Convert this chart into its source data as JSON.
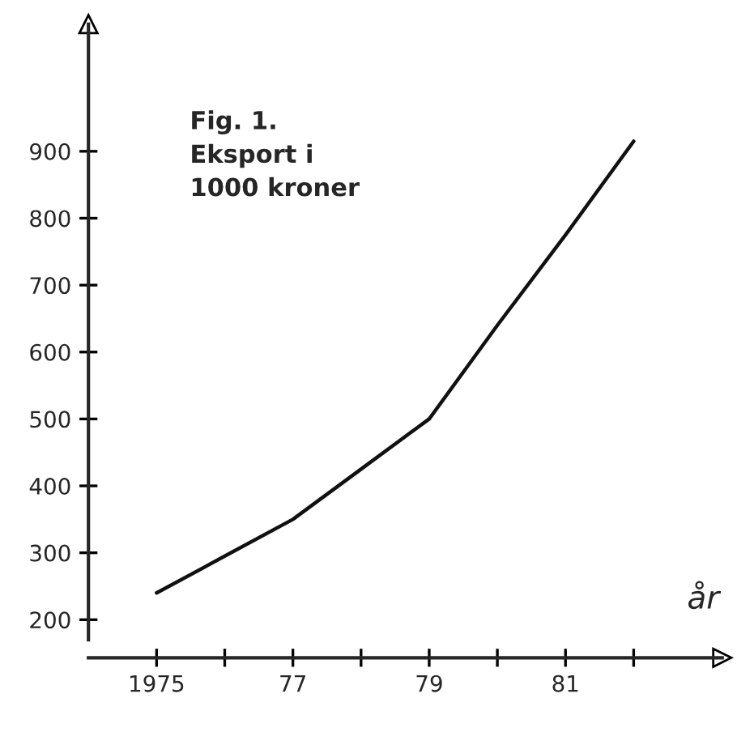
{
  "chart_data": {
    "type": "line",
    "title": "Fig. 1.\nEksport i\n1000 kroner",
    "xlabel": "år",
    "x": [
      1975,
      1976,
      1977,
      1978,
      1979,
      1980,
      1981,
      1982
    ],
    "series": [
      {
        "color": "#111111",
        "values": [
          240,
          295,
          350,
          425,
          500,
          640,
          775,
          915
        ]
      }
    ],
    "xlim": [
      1974,
      1983.3
    ],
    "ylim": [
      170,
      1090
    ],
    "xticks": [
      {
        "value": 1975,
        "label": "1975"
      },
      {
        "value": 1976,
        "label": null
      },
      {
        "value": 1977,
        "label": "77"
      },
      {
        "value": 1978,
        "label": null
      },
      {
        "value": 1979,
        "label": "79"
      },
      {
        "value": 1980,
        "label": null
      },
      {
        "value": 1981,
        "label": "81"
      },
      {
        "value": 1982,
        "label": null
      }
    ],
    "yticks": [
      200,
      300,
      400,
      500,
      600,
      700,
      800,
      900
    ],
    "grid": false,
    "legend": false,
    "marker": "none",
    "line_style": "solid"
  }
}
